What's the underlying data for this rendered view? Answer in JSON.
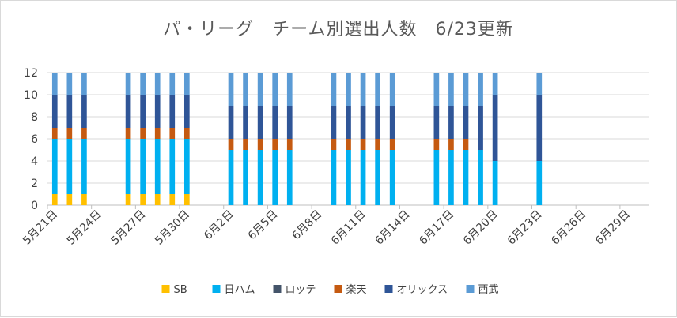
{
  "chart_data": {
    "type": "bar",
    "stacked": true,
    "title": "パ・リーグ　チーム別選出人数　6/23更新",
    "ylim": [
      0,
      12
    ],
    "y_ticks": [
      "0",
      "2",
      "4",
      "6",
      "8",
      "10",
      "12"
    ],
    "grid": "horizontal",
    "legend_position": "bottom",
    "x_tick_labels": [
      "5月21日",
      "5月24日",
      "5月27日",
      "5月30日",
      "6月2日",
      "6月5日",
      "6月8日",
      "6月11日",
      "6月14日",
      "6月17日",
      "6月20日",
      "6月23日",
      "6月26日",
      "6月29日"
    ],
    "dates": [
      "5/21",
      "5/22",
      "5/23",
      "5/24",
      "5/25",
      "5/26",
      "5/27",
      "5/28",
      "5/29",
      "5/30",
      "5/31",
      "6/1",
      "6/2",
      "6/3",
      "6/4",
      "6/5",
      "6/6",
      "6/7",
      "6/8",
      "6/9",
      "6/10",
      "6/11",
      "6/12",
      "6/13",
      "6/14",
      "6/15",
      "6/16",
      "6/17",
      "6/18",
      "6/19",
      "6/20",
      "6/21",
      "6/22",
      "6/23",
      "6/24",
      "6/25",
      "6/26",
      "6/27",
      "6/28",
      "6/29",
      "6/30"
    ],
    "series": [
      {
        "name": "SB",
        "color": "#ffc000",
        "values": [
          1,
          1,
          1,
          0,
          0,
          1,
          1,
          1,
          1,
          1,
          0,
          0,
          0,
          0,
          0,
          0,
          0,
          0,
          0,
          0,
          0,
          0,
          0,
          0,
          0,
          0,
          0,
          0,
          0,
          0,
          0,
          0,
          0,
          0,
          0,
          0,
          0,
          0,
          0,
          0,
          0
        ]
      },
      {
        "name": "日ハム",
        "color": "#00b0f0",
        "values": [
          5,
          5,
          5,
          0,
          0,
          5,
          5,
          5,
          5,
          5,
          0,
          0,
          5,
          5,
          5,
          5,
          5,
          0,
          0,
          5,
          5,
          5,
          5,
          5,
          0,
          0,
          5,
          5,
          5,
          5,
          4,
          0,
          0,
          4,
          0,
          0,
          0,
          0,
          0,
          0,
          0
        ]
      },
      {
        "name": "ロッテ",
        "color": "#44546a",
        "values": [
          0,
          0,
          0,
          0,
          0,
          0,
          0,
          0,
          0,
          0,
          0,
          0,
          0,
          0,
          0,
          0,
          0,
          0,
          0,
          0,
          0,
          0,
          0,
          0,
          0,
          0,
          0,
          0,
          0,
          0,
          0,
          0,
          0,
          0,
          0,
          0,
          0,
          0,
          0,
          0,
          0
        ]
      },
      {
        "name": "楽天",
        "color": "#c55a11",
        "values": [
          1,
          1,
          1,
          0,
          0,
          1,
          1,
          1,
          1,
          1,
          0,
          0,
          1,
          1,
          1,
          1,
          1,
          0,
          0,
          1,
          1,
          1,
          1,
          1,
          0,
          0,
          1,
          1,
          1,
          0,
          0,
          0,
          0,
          0,
          0,
          0,
          0,
          0,
          0,
          0,
          0
        ]
      },
      {
        "name": "オリックス",
        "color": "#2f5597",
        "values": [
          3,
          3,
          3,
          0,
          0,
          3,
          3,
          3,
          3,
          3,
          0,
          0,
          3,
          3,
          3,
          3,
          3,
          0,
          0,
          3,
          3,
          3,
          3,
          3,
          0,
          0,
          3,
          3,
          3,
          4,
          6,
          0,
          0,
          6,
          0,
          0,
          0,
          0,
          0,
          0,
          0
        ]
      },
      {
        "name": "西武",
        "color": "#5b9bd5",
        "values": [
          2,
          2,
          2,
          0,
          0,
          2,
          2,
          2,
          2,
          2,
          0,
          0,
          3,
          3,
          3,
          3,
          3,
          0,
          0,
          3,
          3,
          3,
          3,
          3,
          0,
          0,
          3,
          3,
          3,
          3,
          2,
          0,
          0,
          2,
          0,
          0,
          0,
          0,
          0,
          0,
          0
        ]
      }
    ]
  }
}
